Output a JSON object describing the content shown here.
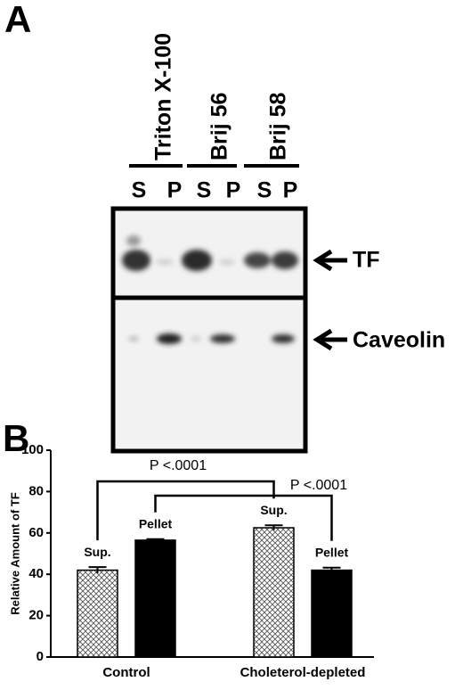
{
  "panels": {
    "a": "A",
    "b": "B"
  },
  "blot": {
    "lanes": [
      "Triton X-100",
      "Brij 56",
      "Brij 58"
    ],
    "fractions": [
      "S",
      "P",
      "S",
      "P",
      "S",
      "P"
    ],
    "bands": [
      "TF",
      "Caveolin"
    ]
  },
  "chart_data": {
    "type": "bar",
    "ylabel": "Relative Amount of TF",
    "categories": [
      "Control",
      "Choleterol-depleted"
    ],
    "series": [
      {
        "name": "Sup.",
        "color": "#888888",
        "values": [
          42,
          62.5
        ],
        "errors": [
          1.5,
          1.2
        ]
      },
      {
        "name": "Pellet",
        "color": "#000000",
        "values": [
          56.5,
          42
        ],
        "errors": [
          0.5,
          1.2
        ]
      }
    ],
    "ylim": [
      0,
      100
    ],
    "yticks": [
      0,
      20,
      40,
      60,
      80,
      100
    ],
    "grid": false,
    "annotations": [
      {
        "text": "P <.0001"
      },
      {
        "text": "P <.0001"
      }
    ]
  }
}
